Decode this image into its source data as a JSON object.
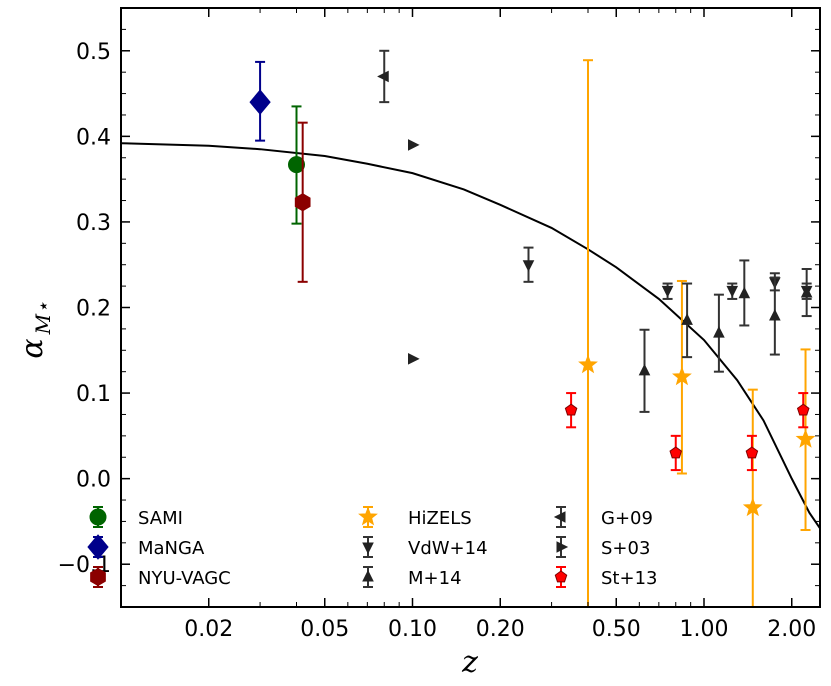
{
  "chart_data": {
    "type": "scatter",
    "xscale": "log",
    "xlim": [
      0.01,
      2.5
    ],
    "ylim": [
      -0.15,
      0.55
    ],
    "xticks": [
      0.02,
      0.05,
      0.1,
      0.2,
      0.5,
      1.0,
      2.0
    ],
    "xtick_labels": [
      "0.02",
      "0.05",
      "0.10",
      "0.20",
      "0.50",
      "1.00",
      "2.00"
    ],
    "yticks": [
      0.5,
      0.4,
      0.3,
      0.2,
      0.1,
      0.0,
      -0.1
    ],
    "ytick_labels": [
      "0.5",
      "0.4",
      "0.3",
      "0.2",
      "0.1",
      "0.0",
      "−0.1"
    ],
    "xlabel": "z",
    "ylabel": "αM⋆",
    "ylabel_main": "α",
    "ylabel_sub": "M⋆",
    "grid": false,
    "legend_position": "lower-left",
    "series": [
      {
        "name": "SAMI",
        "marker": "circle",
        "color": "#006400",
        "edge": "#006400",
        "points": [
          {
            "x": 0.04,
            "y": 0.367,
            "ylo": 0.298,
            "yhi": 0.435
          }
        ]
      },
      {
        "name": "MaNGA",
        "marker": "diamond",
        "color": "#00008b",
        "edge": "#00008b",
        "points": [
          {
            "x": 0.03,
            "y": 0.44,
            "ylo": 0.395,
            "yhi": 0.487
          }
        ]
      },
      {
        "name": "NYU-VAGC",
        "marker": "hexagon",
        "color": "#8b0000",
        "edge": "#8b0000",
        "points": [
          {
            "x": 0.042,
            "y": 0.323,
            "ylo": 0.23,
            "yhi": 0.416
          }
        ]
      },
      {
        "name": "HiZELS",
        "marker": "star",
        "color": "#ffa500",
        "edge": "#ffa500",
        "points": [
          {
            "x": 0.4,
            "y": 0.133,
            "ylo": -0.15,
            "yhi": 0.489
          },
          {
            "x": 0.84,
            "y": 0.119,
            "ylo": 0.006,
            "yhi": 0.231
          },
          {
            "x": 1.47,
            "y": -0.034,
            "ylo": -0.15,
            "yhi": 0.104
          },
          {
            "x": 2.23,
            "y": 0.046,
            "ylo": -0.06,
            "yhi": 0.151
          }
        ]
      },
      {
        "name": "VdW+14",
        "marker": "triangle-down",
        "color": "#222222",
        "edge": "#222222",
        "points": [
          {
            "x": 0.25,
            "y": 0.25,
            "ylo": 0.23,
            "yhi": 0.27
          },
          {
            "x": 0.75,
            "y": 0.22,
            "ylo": 0.21,
            "yhi": 0.228
          },
          {
            "x": 1.25,
            "y": 0.22,
            "ylo": 0.21,
            "yhi": 0.228
          },
          {
            "x": 1.75,
            "y": 0.23,
            "ylo": 0.22,
            "yhi": 0.24
          },
          {
            "x": 2.25,
            "y": 0.22,
            "ylo": 0.21,
            "yhi": 0.228
          }
        ]
      },
      {
        "name": "M+14",
        "marker": "triangle-up",
        "color": "#222222",
        "edge": "#222222",
        "points": [
          {
            "x": 0.625,
            "y": 0.126,
            "ylo": 0.078,
            "yhi": 0.174
          },
          {
            "x": 0.875,
            "y": 0.185,
            "ylo": 0.142,
            "yhi": 0.228
          },
          {
            "x": 1.125,
            "y": 0.17,
            "ylo": 0.125,
            "yhi": 0.215
          },
          {
            "x": 1.375,
            "y": 0.216,
            "ylo": 0.179,
            "yhi": 0.255
          },
          {
            "x": 1.75,
            "y": 0.19,
            "ylo": 0.145,
            "yhi": 0.235
          },
          {
            "x": 2.25,
            "y": 0.217,
            "ylo": 0.19,
            "yhi": 0.245
          }
        ]
      },
      {
        "name": "G+09",
        "marker": "triangle-left",
        "color": "#222222",
        "edge": "#222222",
        "points": [
          {
            "x": 0.08,
            "y": 0.47,
            "ylo": 0.44,
            "yhi": 0.5
          }
        ]
      },
      {
        "name": "S+03",
        "marker": "triangle-right",
        "color": "#222222",
        "edge": "#222222",
        "points": [
          {
            "x": 0.1,
            "y": 0.39,
            "ylo": 0.39,
            "yhi": 0.39
          },
          {
            "x": 0.1,
            "y": 0.14,
            "ylo": 0.14,
            "yhi": 0.14
          }
        ]
      },
      {
        "name": "St+13",
        "marker": "pentagon",
        "color": "#ff0000",
        "edge": "#800000",
        "points": [
          {
            "x": 0.35,
            "y": 0.08,
            "ylo": 0.06,
            "yhi": 0.1
          },
          {
            "x": 0.8,
            "y": 0.03,
            "ylo": 0.01,
            "yhi": 0.05
          },
          {
            "x": 1.46,
            "y": 0.03,
            "ylo": 0.01,
            "yhi": 0.05
          },
          {
            "x": 2.19,
            "y": 0.08,
            "ylo": 0.06,
            "yhi": 0.1
          }
        ]
      }
    ],
    "fit_curve": {
      "name": "model",
      "color": "#000000",
      "points": [
        {
          "x": 0.01,
          "y": 0.392
        },
        {
          "x": 0.02,
          "y": 0.389
        },
        {
          "x": 0.03,
          "y": 0.385
        },
        {
          "x": 0.05,
          "y": 0.377
        },
        {
          "x": 0.07,
          "y": 0.368
        },
        {
          "x": 0.1,
          "y": 0.357
        },
        {
          "x": 0.15,
          "y": 0.338
        },
        {
          "x": 0.2,
          "y": 0.32
        },
        {
          "x": 0.3,
          "y": 0.293
        },
        {
          "x": 0.4,
          "y": 0.268
        },
        {
          "x": 0.5,
          "y": 0.247
        },
        {
          "x": 0.7,
          "y": 0.21
        },
        {
          "x": 1.0,
          "y": 0.162
        },
        {
          "x": 1.3,
          "y": 0.115
        },
        {
          "x": 1.6,
          "y": 0.068
        },
        {
          "x": 2.0,
          "y": 0.0
        },
        {
          "x": 2.3,
          "y": -0.04
        },
        {
          "x": 2.5,
          "y": -0.058
        }
      ]
    }
  }
}
